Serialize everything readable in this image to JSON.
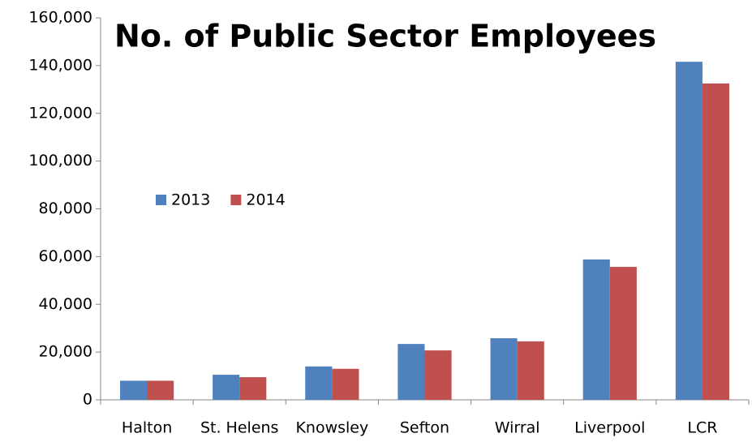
{
  "chart_data": {
    "type": "bar",
    "title": "No. of Public Sector Employees",
    "categories": [
      "Halton",
      "St. Helens",
      "Knowsley",
      "Sefton",
      "Wirral",
      "Liverpool",
      "LCR"
    ],
    "series": [
      {
        "name": "2013",
        "color": "#4f81bd",
        "values": [
          8000,
          10500,
          14000,
          23400,
          25800,
          58800,
          141600
        ]
      },
      {
        "name": "2014",
        "color": "#c0504d",
        "values": [
          8000,
          9500,
          13000,
          20700,
          24500,
          55700,
          132500
        ]
      }
    ],
    "ylim": [
      0,
      160000
    ],
    "yticks": [
      0,
      {
        "value": 20000,
        "label": "20,000"
      },
      {
        "value": 40000,
        "label": "40,000"
      },
      {
        "value": 60000,
        "label": "60,000"
      },
      {
        "value": 80000,
        "label": "80,000"
      },
      {
        "value": 100000,
        "label": "100,000"
      },
      {
        "value": 120000,
        "label": "120,000"
      },
      {
        "value": 140000,
        "label": "140,000"
      },
      {
        "value": 160000,
        "label": "160,000"
      }
    ],
    "grid": false,
    "legend": "left"
  }
}
